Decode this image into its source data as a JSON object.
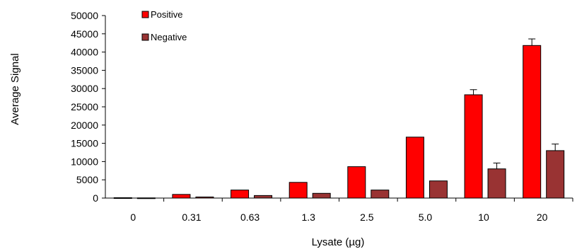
{
  "chart_data": {
    "type": "bar",
    "title": "",
    "xlabel": "Lysate (µg)",
    "ylabel": "Average Signal",
    "categories": [
      "0",
      "0.31",
      "0.63",
      "1.3",
      "2.5",
      "5.0",
      "10",
      "20"
    ],
    "ylim": [
      0,
      50000
    ],
    "yticks": [
      "0",
      "5000",
      "10000",
      "15000",
      "20000",
      "25000",
      "30000",
      "35000",
      "40000",
      "45000",
      "50000"
    ],
    "grid": false,
    "legend_position": "top-left",
    "series": [
      {
        "name": "Positive",
        "color": "#ff0000",
        "values": [
          100,
          1000,
          2200,
          4300,
          8600,
          16700,
          28300,
          41800
        ],
        "error": [
          0,
          0,
          0,
          0,
          0,
          0,
          1400,
          1800
        ]
      },
      {
        "name": "Negative",
        "color": "#993333",
        "values": [
          50,
          300,
          700,
          1300,
          2200,
          4700,
          8000,
          13000
        ],
        "error": [
          0,
          0,
          0,
          0,
          0,
          0,
          1600,
          1800
        ]
      }
    ]
  }
}
